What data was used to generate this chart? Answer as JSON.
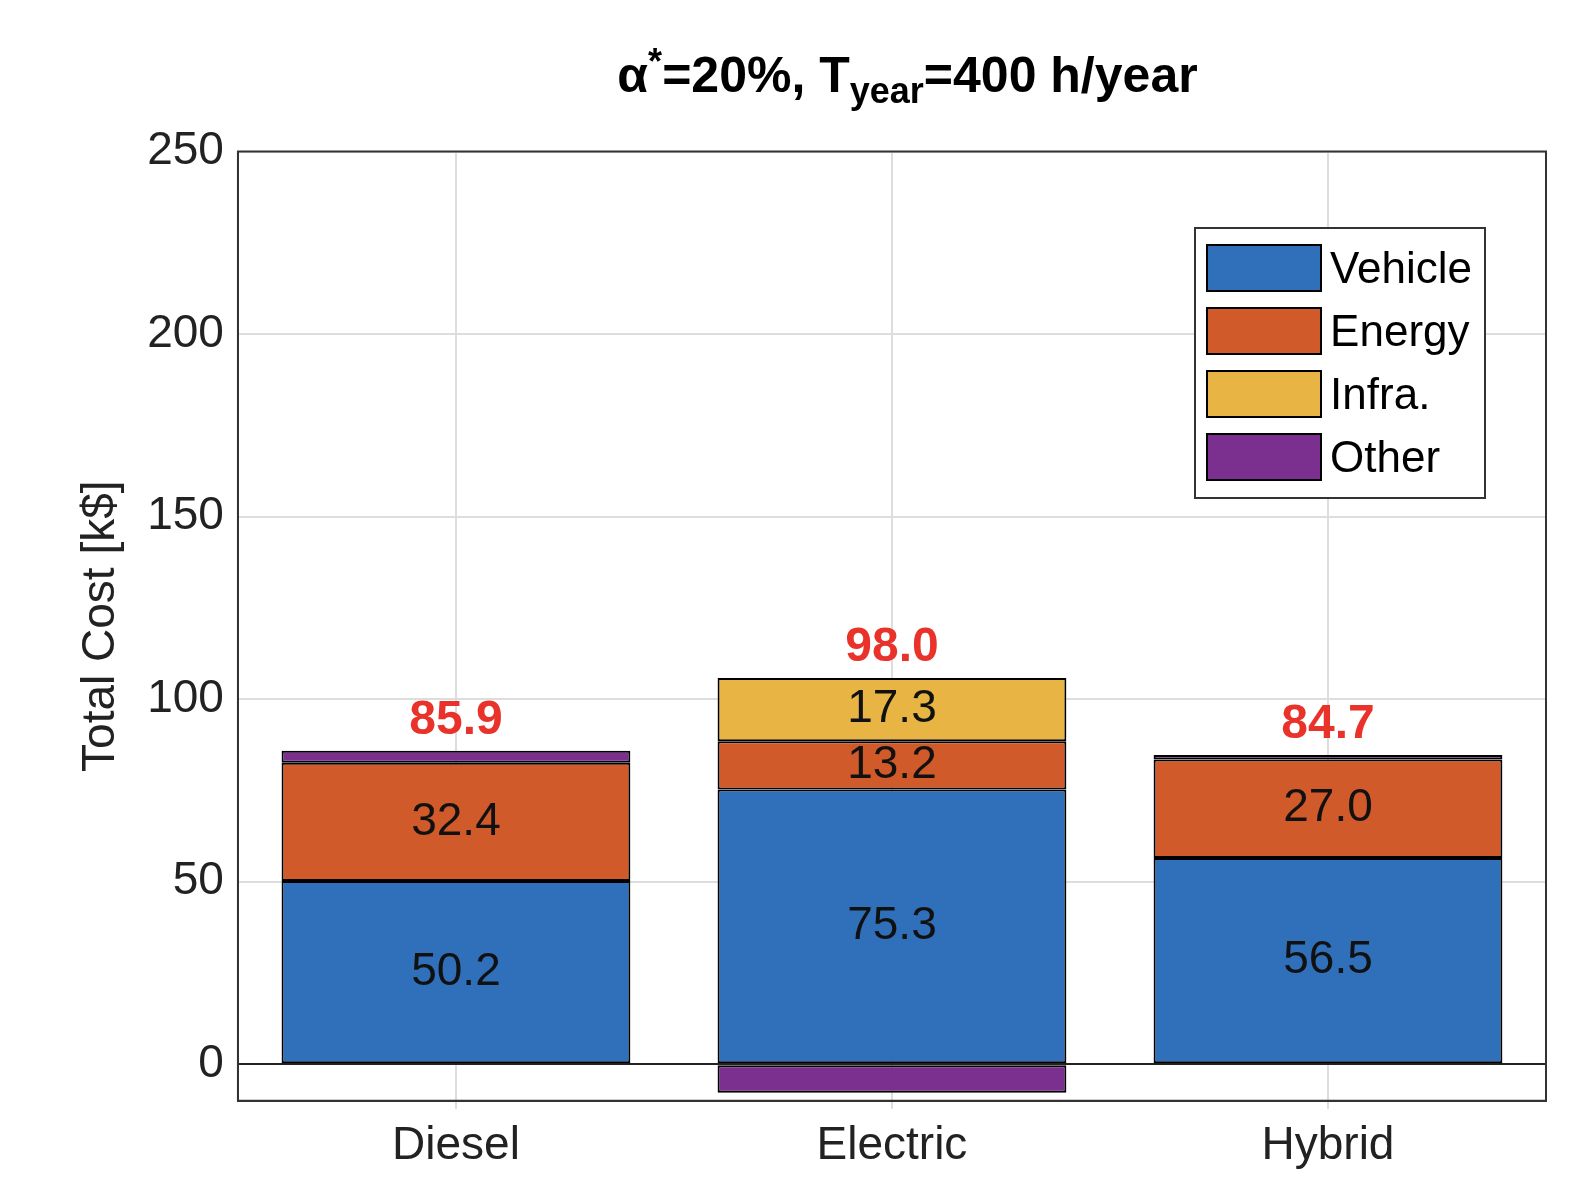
{
  "chart_data": {
    "type": "bar",
    "title": "α$^{*}$=20%, T$_{year}$=400 h/year",
    "ylabel": "Total Cost [k$]",
    "categories": [
      "Diesel",
      "Electric",
      "Hybrid"
    ],
    "stacked": true,
    "series": [
      {
        "name": "Vehicle",
        "color": "#3070bb",
        "values": [
          50.2,
          75.3,
          56.5
        ],
        "value_labels": [
          "50.2",
          "75.3",
          "56.5"
        ]
      },
      {
        "name": "Energy",
        "color": "#d05a2a",
        "values": [
          32.4,
          13.2,
          27.0
        ],
        "value_labels": [
          "32.4",
          "13.2",
          "27.0"
        ]
      },
      {
        "name": "Infra.",
        "color": "#e8b545",
        "values": [
          0,
          17.3,
          0
        ],
        "value_labels": [
          null,
          "17.3",
          null
        ]
      },
      {
        "name": "Other",
        "color": "#7b3090",
        "values": [
          3.3,
          -7.8,
          1.2
        ]
      }
    ],
    "totals": [
      "85.9",
      "98.0",
      "84.7"
    ],
    "ylim": [
      -10,
      250
    ],
    "yticks": [
      0,
      50,
      100,
      150,
      200,
      250
    ],
    "grid": true,
    "legend": "top right"
  }
}
